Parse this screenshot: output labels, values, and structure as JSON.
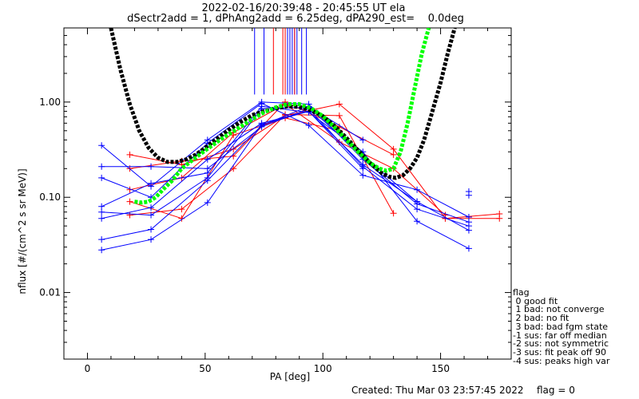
{
  "chart_data": {
    "type": "line",
    "title": "2022-02-16/20:39:48 - 20:45:55 UT ela",
    "subtitle": "dSectr2add = 1, dPhAng2add = 6.25deg, dPA290_est=    0.0deg",
    "xlabel": "PA [deg]",
    "ylabel": "nflux [#/(cm^2 s sr MeV)]",
    "xlim": [
      -10,
      180
    ],
    "ylim": [
      0.002,
      6.0
    ],
    "yscale": "log",
    "grid": false,
    "x_ticks": [
      "0",
      "50",
      "100",
      "150"
    ],
    "y_ticks": [
      "0.01",
      "0.10",
      "1.00"
    ],
    "colors": {
      "blue": "#0000ff",
      "red": "#ff0000",
      "black": "#000000",
      "green": "#00ff00"
    },
    "blue_series": [
      {
        "x": [
          6,
          27,
          51,
          74,
          94,
          117,
          140,
          162
        ],
        "y": [
          0.35,
          0.13,
          0.4,
          1.0,
          0.95,
          0.25,
          0.085,
          0.055
        ]
      },
      {
        "x": [
          6,
          27,
          51,
          74,
          94,
          117,
          140,
          162
        ],
        "y": [
          0.21,
          0.21,
          0.2,
          0.55,
          0.85,
          0.21,
          0.075,
          0.05
        ]
      },
      {
        "x": [
          6,
          27,
          51,
          74,
          94,
          117,
          140,
          162
        ],
        "y": [
          0.16,
          0.1,
          0.37,
          0.97,
          0.57,
          0.17,
          0.12,
          0.062
        ]
      },
      {
        "x": [
          6,
          27,
          51,
          74,
          94,
          117,
          140,
          162
        ],
        "y": [
          0.08,
          0.14,
          0.18,
          0.9,
          0.78,
          0.3,
          0.056,
          0.029
        ]
      },
      {
        "x": [
          6,
          27,
          51,
          74,
          94,
          117,
          140
        ],
        "y": [
          0.07,
          0.065,
          0.16,
          0.85,
          0.88,
          0.27,
          0.09
        ]
      },
      {
        "x": [
          6,
          27,
          51,
          74,
          94,
          117
        ],
        "y": [
          0.06,
          0.078,
          0.25,
          0.6,
          0.8,
          0.2
        ]
      },
      {
        "x": [
          6,
          27,
          51,
          74,
          94,
          117
        ],
        "y": [
          0.036,
          0.046,
          0.15,
          0.57,
          0.9,
          0.4
        ]
      },
      {
        "x": [
          6,
          27,
          51,
          74,
          94,
          117,
          140,
          162
        ],
        "y": [
          0.028,
          0.036,
          0.088,
          0.58,
          0.8,
          0.22,
          0.09,
          0.045
        ]
      }
    ],
    "red_series": [
      {
        "x": [
          18,
          40,
          62,
          84,
          107,
          130,
          152,
          175
        ],
        "y": [
          0.28,
          0.22,
          0.32,
          0.72,
          0.95,
          0.32,
          0.06,
          0.06
        ]
      },
      {
        "x": [
          18,
          40,
          62,
          84,
          107,
          130
        ],
        "y": [
          0.2,
          0.24,
          0.27,
          1.0,
          0.55,
          0.28
        ]
      },
      {
        "x": [
          18,
          40,
          62,
          84,
          107,
          130,
          152
        ],
        "y": [
          0.12,
          0.16,
          0.48,
          0.95,
          0.38,
          0.2,
          0.065
        ]
      },
      {
        "x": [
          18,
          40,
          62,
          84,
          107
        ],
        "y": [
          0.09,
          0.06,
          0.45,
          0.68,
          0.5
        ]
      },
      {
        "x": [
          18,
          40,
          62,
          84,
          107,
          130
        ],
        "y": [
          0.065,
          0.075,
          0.2,
          0.74,
          0.72,
          0.068
        ]
      },
      {
        "x": [
          152,
          175
        ],
        "y": [
          0.06,
          0.067
        ]
      }
    ],
    "blue_markers": [
      {
        "x": 162,
        "y": 0.115
      },
      {
        "x": 162,
        "y": 0.105
      }
    ],
    "blue_peak_ticks": [
      71,
      75,
      85,
      86,
      87,
      88,
      89,
      91,
      93
    ],
    "red_peak_ticks": [
      79,
      83,
      84,
      88
    ],
    "black_fit": {
      "x": [
        10,
        14,
        18,
        22,
        26,
        30,
        34,
        38,
        42,
        46,
        50,
        55,
        60,
        65,
        70,
        75,
        80,
        85,
        90,
        95,
        100,
        105,
        110,
        115,
        120,
        125,
        128,
        131,
        134,
        137,
        140,
        143,
        146,
        150,
        153,
        156
      ],
      "y": [
        6.0,
        2.2,
        0.95,
        0.5,
        0.33,
        0.26,
        0.235,
        0.235,
        0.25,
        0.28,
        0.33,
        0.41,
        0.51,
        0.62,
        0.73,
        0.8,
        0.86,
        0.9,
        0.89,
        0.82,
        0.71,
        0.56,
        0.42,
        0.31,
        0.23,
        0.18,
        0.165,
        0.16,
        0.17,
        0.2,
        0.26,
        0.4,
        0.72,
        1.6,
        3.2,
        6.0
      ]
    },
    "green_fit": {
      "x": [
        20,
        23,
        26,
        29,
        32,
        36,
        40,
        45,
        50,
        55,
        60,
        65,
        70,
        75,
        80,
        85,
        90,
        95,
        100,
        105,
        110,
        115,
        120,
        124,
        127,
        130,
        133,
        136,
        139,
        142,
        145
      ],
      "y": [
        0.09,
        0.088,
        0.09,
        0.1,
        0.12,
        0.15,
        0.2,
        0.25,
        0.31,
        0.38,
        0.46,
        0.55,
        0.66,
        0.78,
        0.88,
        0.95,
        0.95,
        0.86,
        0.71,
        0.54,
        0.4,
        0.3,
        0.23,
        0.2,
        0.19,
        0.2,
        0.3,
        0.6,
        1.4,
        3.2,
        6.0
      ]
    }
  },
  "legend": {
    "title": "flag",
    "items": [
      " 0 good fit",
      " 1 bad: not converge",
      " 2 bad: no fit",
      " 3 bad: bad fgm state",
      "-1 sus: far off median",
      "-2 sus: not symmetric",
      "-3 sus: fit peak off 90",
      "-4 sus: peaks high var"
    ]
  },
  "footer": {
    "created": "Created: Thu Mar 03 23:57:45 2022",
    "flag": "flag = 0"
  }
}
